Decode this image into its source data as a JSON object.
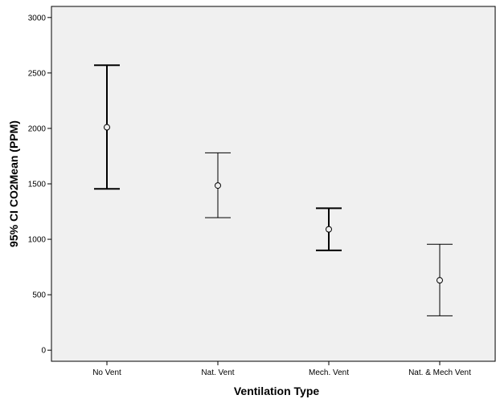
{
  "chart_data": {
    "type": "errorbar",
    "title": "",
    "xlabel": "Ventilation Type",
    "ylabel": "95% CI CO2Mean (PPM)",
    "categories": [
      "No Vent",
      "Nat. Vent",
      "Mech. Vent",
      "Nat. & Mech Vent"
    ],
    "series": [
      {
        "mean": [
          2010,
          1485,
          1090,
          630
        ],
        "lower": [
          1455,
          1195,
          900,
          310
        ],
        "upper": [
          2570,
          1780,
          1280,
          955
        ]
      }
    ],
    "ylim": [
      -100,
      3100
    ],
    "yticks": [
      0,
      500,
      1000,
      1500,
      2000,
      2500,
      3000
    ],
    "yticklabels": [
      "0",
      "500",
      "1000",
      "1500",
      "2000",
      "2500",
      "3000"
    ],
    "grid": false,
    "legend": "none",
    "colors": {
      "plot_background": "#f0f0f0",
      "figure_background": "#ffffff",
      "marks": "#000000"
    }
  }
}
